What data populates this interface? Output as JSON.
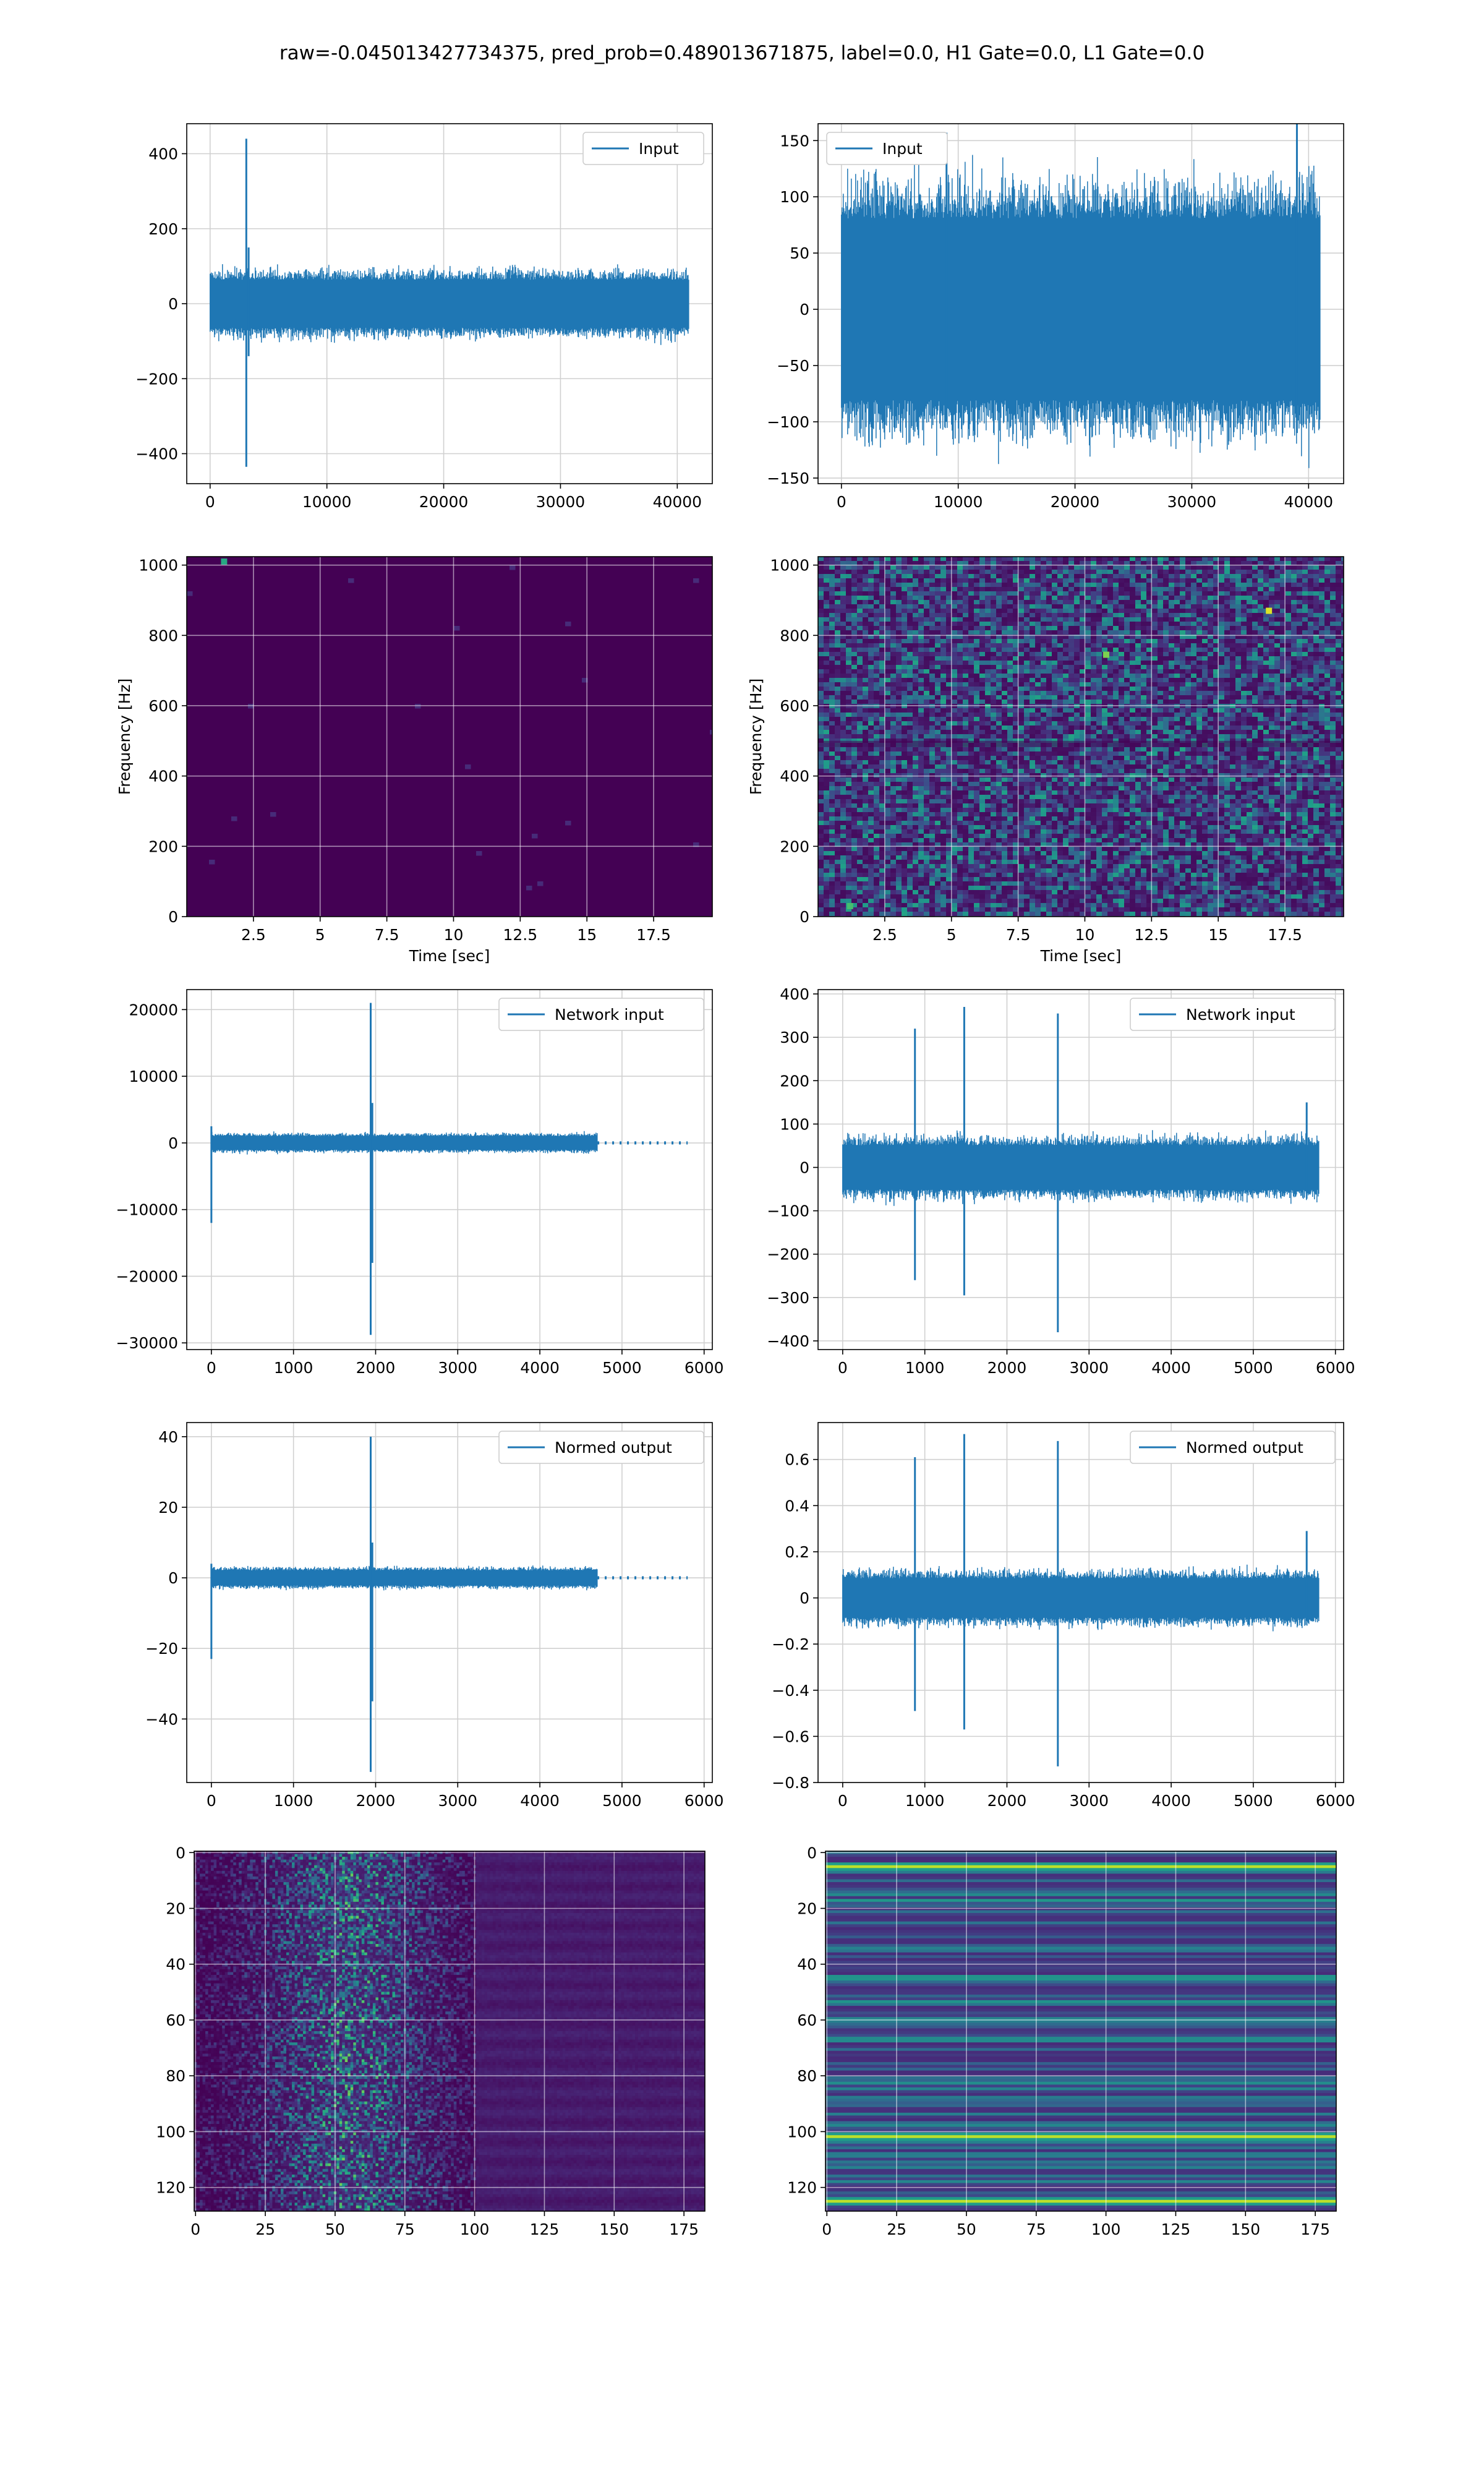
{
  "figure": {
    "title": "raw=-0.045013427734375, pred_prob=0.489013671875, label=0.0, H1 Gate=0.0, L1 Gate=0.0"
  },
  "colors": {
    "series": "#1f77b4",
    "grid": "#d0d0d0",
    "viridis_dark": "#440154",
    "viridis_mid": "#3b528b",
    "viridis_teal": "#21918c",
    "viridis_green": "#5ec962",
    "viridis_yellow": "#fde725"
  },
  "chart_data": [
    {
      "id": "row1-left",
      "type": "line",
      "legend": "Input",
      "legend_loc": "upper right",
      "xlim": [
        -2000,
        43000
      ],
      "ylim": [
        -480,
        480
      ],
      "grid": true,
      "xticks": [
        0,
        10000,
        20000,
        30000,
        40000
      ],
      "yticks": [
        -400,
        -200,
        0,
        200,
        400
      ],
      "n_samples": 40960,
      "noise_amplitude": 75,
      "spikes": [
        {
          "x": 3100,
          "max": 440,
          "min": -435
        },
        {
          "x": 3300,
          "max": 150,
          "min": -140
        }
      ]
    },
    {
      "id": "row1-right",
      "type": "line",
      "legend": "Input",
      "legend_loc": "upper left",
      "xlim": [
        -2000,
        43000
      ],
      "ylim": [
        -155,
        165
      ],
      "grid": true,
      "xticks": [
        0,
        10000,
        20000,
        30000,
        40000
      ],
      "yticks": [
        -150,
        -100,
        -50,
        0,
        50,
        100,
        150
      ],
      "n_samples": 40960,
      "noise_amplitude": 95,
      "spikes": [
        {
          "x": 9000,
          "max": 157,
          "min": -100
        },
        {
          "x": 39000,
          "max": 165,
          "min": -110
        }
      ]
    },
    {
      "id": "row2-left",
      "type": "heatmap",
      "colormap": "viridis",
      "xlim": [
        0,
        19.7
      ],
      "ylim": [
        0,
        1024
      ],
      "grid": true,
      "xticks": [
        2.5,
        5.0,
        7.5,
        10.0,
        12.5,
        15.0,
        17.5
      ],
      "yticks": [
        0,
        200,
        400,
        600,
        800,
        1000
      ],
      "xlabel": "Time [sec]",
      "ylabel": "Frequency [Hz]",
      "hotspots": [
        {
          "x": 1.4,
          "y": 1010,
          "value": 0.6
        }
      ]
    },
    {
      "id": "row2-right",
      "type": "heatmap",
      "colormap": "viridis",
      "xlim": [
        0,
        19.7
      ],
      "ylim": [
        0,
        1024
      ],
      "grid": true,
      "xticks": [
        2.5,
        5.0,
        7.5,
        10.0,
        12.5,
        15.0,
        17.5
      ],
      "yticks": [
        0,
        200,
        400,
        600,
        800,
        1000
      ],
      "xlabel": "Time [sec]",
      "ylabel": "Frequency [Hz]",
      "hotspots": [
        {
          "x": 16.9,
          "y": 870,
          "value": 0.95
        },
        {
          "x": 10.8,
          "y": 745,
          "value": 0.8
        },
        {
          "x": 1.2,
          "y": 30,
          "value": 0.7
        }
      ]
    },
    {
      "id": "row3-left",
      "type": "line",
      "legend": "Network input",
      "legend_loc": "upper right",
      "xlim": [
        -300,
        6100
      ],
      "ylim": [
        -31000,
        23000
      ],
      "grid": true,
      "xticks": [
        0,
        1000,
        2000,
        3000,
        4000,
        5000,
        6000
      ],
      "yticks": [
        -30000,
        -20000,
        -10000,
        0,
        10000,
        20000
      ],
      "n_samples": 5800,
      "noise_amplitude": 1200,
      "noise_end": 4700,
      "tail_dots_end": 5800,
      "spikes": [
        {
          "x": 0,
          "max": 2500,
          "min": -12000
        },
        {
          "x": 1940,
          "max": 21000,
          "min": -28800
        },
        {
          "x": 1960,
          "max": 6000,
          "min": -18000
        }
      ]
    },
    {
      "id": "row3-right",
      "type": "line",
      "legend": "Network input",
      "legend_loc": "upper right",
      "xlim": [
        -300,
        6100
      ],
      "ylim": [
        -420,
        410
      ],
      "grid": true,
      "xticks": [
        0,
        1000,
        2000,
        3000,
        4000,
        5000,
        6000
      ],
      "yticks": [
        -400,
        -300,
        -200,
        -100,
        0,
        100,
        200,
        300,
        400
      ],
      "n_samples": 5800,
      "noise_amplitude": 60,
      "spikes": [
        {
          "x": 880,
          "max": 320,
          "min": -260
        },
        {
          "x": 1480,
          "max": 370,
          "min": -295
        },
        {
          "x": 2620,
          "max": 355,
          "min": -380
        },
        {
          "x": 5650,
          "max": 150,
          "min": -60
        }
      ]
    },
    {
      "id": "row4-left",
      "type": "line",
      "legend": "Normed output",
      "legend_loc": "upper right",
      "xlim": [
        -300,
        6100
      ],
      "ylim": [
        -58,
        44
      ],
      "grid": true,
      "xticks": [
        0,
        1000,
        2000,
        3000,
        4000,
        5000,
        6000
      ],
      "yticks": [
        -40,
        -20,
        0,
        20,
        40
      ],
      "n_samples": 5800,
      "noise_amplitude": 2.5,
      "noise_end": 4700,
      "tail_dots_end": 5800,
      "spikes": [
        {
          "x": 0,
          "max": 4,
          "min": -23
        },
        {
          "x": 1940,
          "max": 40,
          "min": -55
        },
        {
          "x": 1960,
          "max": 10,
          "min": -35
        }
      ]
    },
    {
      "id": "row4-right",
      "type": "line",
      "legend": "Normed output",
      "legend_loc": "upper right",
      "xlim": [
        -300,
        6100
      ],
      "ylim": [
        -0.8,
        0.76
      ],
      "grid": true,
      "xticks": [
        0,
        1000,
        2000,
        3000,
        4000,
        5000,
        6000
      ],
      "yticks": [
        -0.8,
        -0.6,
        -0.4,
        -0.2,
        0.0,
        0.2,
        0.4,
        0.6
      ],
      "n_samples": 5800,
      "noise_amplitude": 0.1,
      "spikes": [
        {
          "x": 880,
          "max": 0.61,
          "min": -0.49
        },
        {
          "x": 1480,
          "max": 0.71,
          "min": -0.57
        },
        {
          "x": 2620,
          "max": 0.68,
          "min": -0.73
        },
        {
          "x": 5650,
          "max": 0.29,
          "min": -0.1
        }
      ]
    },
    {
      "id": "row5-left",
      "type": "heatmap",
      "colormap": "viridis",
      "xlim": [
        -0.5,
        182.5
      ],
      "ylim": [
        128.5,
        -0.5
      ],
      "grid": true,
      "xticks": [
        0,
        25,
        50,
        75,
        100,
        125,
        150,
        175
      ],
      "yticks": [
        0,
        20,
        40,
        60,
        80,
        100,
        120
      ],
      "rows": 128,
      "cols": 183,
      "active_cols": [
        0,
        100
      ],
      "peak_col": 55
    },
    {
      "id": "row5-right",
      "type": "heatmap",
      "colormap": "viridis",
      "xlim": [
        -0.5,
        182.5
      ],
      "ylim": [
        128.5,
        -0.5
      ],
      "grid": true,
      "xticks": [
        0,
        25,
        50,
        75,
        100,
        125,
        150,
        175
      ],
      "yticks": [
        0,
        20,
        40,
        60,
        80,
        100,
        120
      ],
      "rows": 128,
      "cols": 183,
      "bright_rows": [
        5,
        101,
        124
      ]
    }
  ]
}
